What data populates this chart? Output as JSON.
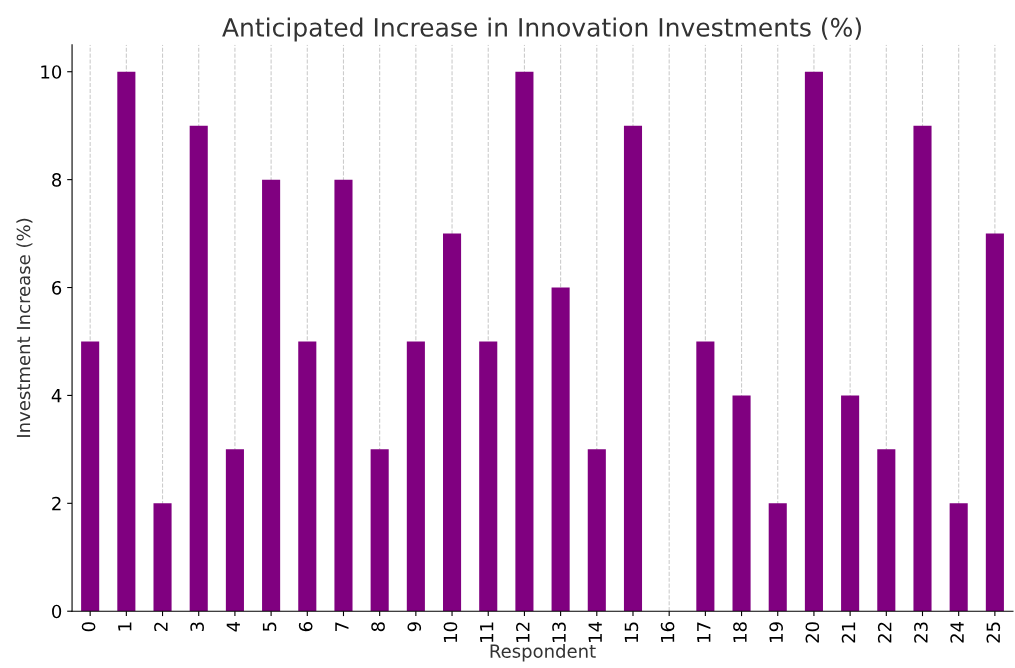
{
  "chart_data": {
    "type": "bar",
    "title": "Anticipated Increase in Innovation Investments (%)",
    "xlabel": "Respondent",
    "ylabel": "Investment Increase (%)",
    "categories": [
      "0",
      "1",
      "2",
      "3",
      "4",
      "5",
      "6",
      "7",
      "8",
      "9",
      "10",
      "11",
      "12",
      "13",
      "14",
      "15",
      "16",
      "17",
      "18",
      "19",
      "20",
      "21",
      "22",
      "23",
      "24",
      "25"
    ],
    "values": [
      5,
      10,
      2,
      9,
      3,
      8,
      5,
      8,
      3,
      5,
      7,
      5,
      10,
      6,
      3,
      9,
      0,
      5,
      4,
      2,
      10,
      4,
      3,
      9,
      2,
      7
    ],
    "color": "#800080",
    "ylim": [
      0,
      10.5
    ],
    "yticks": [
      0,
      2,
      4,
      6,
      8,
      10
    ],
    "grid": "x"
  }
}
